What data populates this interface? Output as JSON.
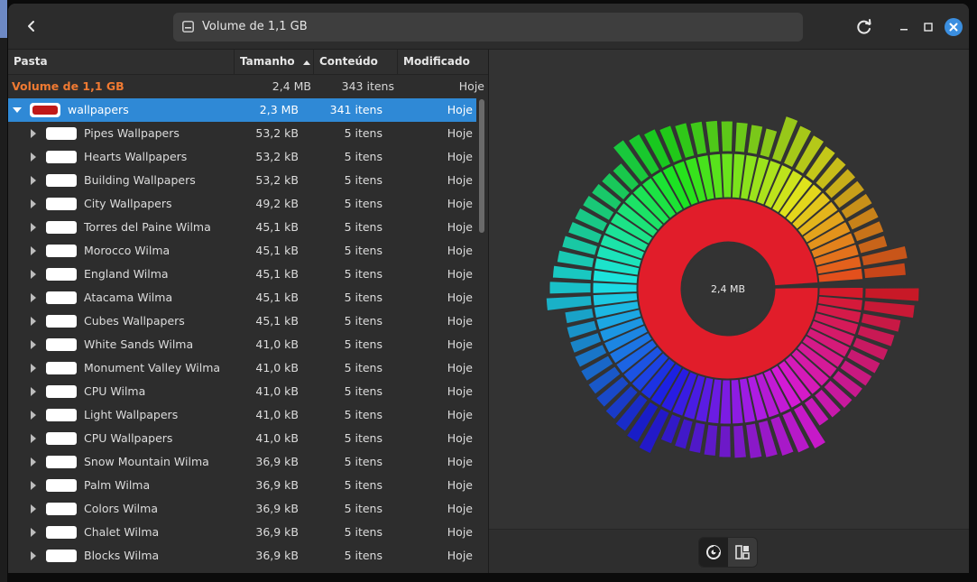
{
  "window": {
    "address": "Volume de 1,1 GB"
  },
  "columns": {
    "name": "Pasta",
    "size": "Tamanho",
    "contents": "Conteúdo",
    "modified": "Modificado"
  },
  "total_row": {
    "name": "Volume de 1,1 GB",
    "size": "2,4 MB",
    "contents": "343 itens",
    "modified": "Hoje"
  },
  "selected_row": {
    "name": "wallpapers",
    "size": "2,3 MB",
    "contents": "341 itens",
    "modified": "Hoje"
  },
  "rows": [
    {
      "name": "Pipes Wallpapers",
      "size": "53,2 kB",
      "contents": "5 itens",
      "modified": "Hoje"
    },
    {
      "name": "Hearts Wallpapers",
      "size": "53,2 kB",
      "contents": "5 itens",
      "modified": "Hoje"
    },
    {
      "name": "Building Wallpapers",
      "size": "53,2 kB",
      "contents": "5 itens",
      "modified": "Hoje"
    },
    {
      "name": "City Wallpapers",
      "size": "49,2 kB",
      "contents": "5 itens",
      "modified": "Hoje"
    },
    {
      "name": "Torres del Paine Wilma",
      "size": "45,1 kB",
      "contents": "5 itens",
      "modified": "Hoje"
    },
    {
      "name": "Morocco Wilma",
      "size": "45,1 kB",
      "contents": "5 itens",
      "modified": "Hoje"
    },
    {
      "name": "England Wilma",
      "size": "45,1 kB",
      "contents": "5 itens",
      "modified": "Hoje"
    },
    {
      "name": "Atacama Wilma",
      "size": "45,1 kB",
      "contents": "5 itens",
      "modified": "Hoje"
    },
    {
      "name": "Cubes Wallpapers",
      "size": "45,1 kB",
      "contents": "5 itens",
      "modified": "Hoje"
    },
    {
      "name": "White Sands Wilma",
      "size": "41,0 kB",
      "contents": "5 itens",
      "modified": "Hoje"
    },
    {
      "name": "Monument Valley Wilma",
      "size": "41,0 kB",
      "contents": "5 itens",
      "modified": "Hoje"
    },
    {
      "name": "CPU Wilma",
      "size": "41,0 kB",
      "contents": "5 itens",
      "modified": "Hoje"
    },
    {
      "name": "Light Wallpapers",
      "size": "41,0 kB",
      "contents": "5 itens",
      "modified": "Hoje"
    },
    {
      "name": "CPU Wallpapers",
      "size": "41,0 kB",
      "contents": "5 itens",
      "modified": "Hoje"
    },
    {
      "name": "Snow Mountain Wilma",
      "size": "36,9 kB",
      "contents": "5 itens",
      "modified": "Hoje"
    },
    {
      "name": "Palm Wilma",
      "size": "36,9 kB",
      "contents": "5 itens",
      "modified": "Hoje"
    },
    {
      "name": "Colors Wilma",
      "size": "36,9 kB",
      "contents": "5 itens",
      "modified": "Hoje"
    },
    {
      "name": "Chalet Wilma",
      "size": "36,9 kB",
      "contents": "5 itens",
      "modified": "Hoje"
    },
    {
      "name": "Blocks Wilma",
      "size": "36,9 kB",
      "contents": "5 itens",
      "modified": "Hoje"
    }
  ],
  "chart": {
    "center_label": "2,4 MB",
    "segments": 68
  },
  "colors": {
    "accent": "#2f89d6",
    "total_text": "#f07a32",
    "core_ring": "#e11d2a"
  }
}
